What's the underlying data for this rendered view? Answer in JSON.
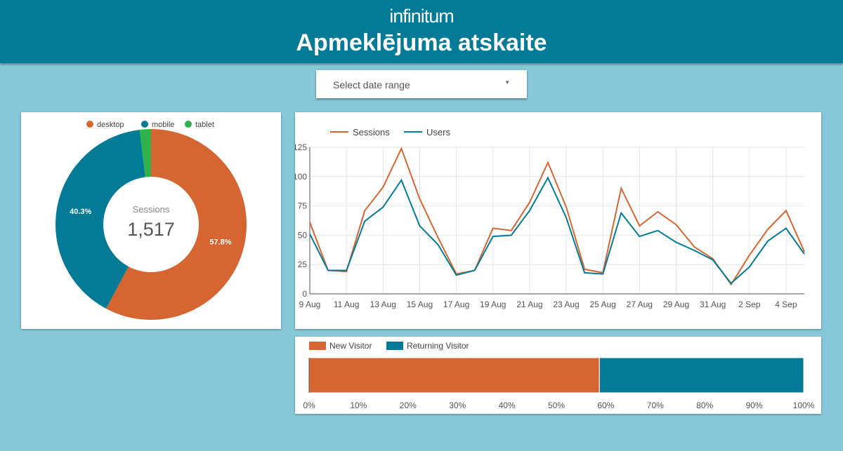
{
  "header": {
    "logo": "infinitum",
    "title": "Apmeklējuma atskaite"
  },
  "date_range": {
    "placeholder": "Select date range"
  },
  "chart_data": [
    {
      "type": "pie",
      "legend": [
        "desktop",
        "mobile",
        "tablet"
      ],
      "values": [
        57.8,
        40.3,
        1.9
      ],
      "labels": [
        "57.8%",
        "40.3%",
        ""
      ],
      "colors": [
        "#d66631",
        "#037b96",
        "#2db34a"
      ],
      "center_label": "Sessions",
      "center_value": "1,517"
    },
    {
      "type": "line",
      "legend_position": "top-left",
      "ylim": [
        0,
        125
      ],
      "yticks": [
        "0",
        "25",
        "50",
        "75",
        "100",
        "125"
      ],
      "xticks": [
        "9 Aug",
        "11 Aug",
        "13 Aug",
        "15 Aug",
        "17 Aug",
        "19 Aug",
        "21 Aug",
        "23 Aug",
        "25 Aug",
        "27 Aug",
        "29 Aug",
        "31 Aug",
        "2 Sep",
        "4 Sep"
      ],
      "series": [
        {
          "name": "Sessions",
          "color": "#d66631",
          "values": [
            61,
            20,
            19,
            71,
            91,
            124,
            81,
            48,
            17,
            20,
            56,
            54,
            78,
            112,
            74,
            21,
            18,
            90,
            58,
            70,
            59,
            40,
            30,
            8,
            33,
            55,
            71,
            36
          ]
        },
        {
          "name": "Users",
          "color": "#037b96",
          "values": [
            51,
            20,
            20,
            62,
            74,
            97,
            58,
            42,
            16,
            20,
            49,
            50,
            71,
            99,
            65,
            18,
            17,
            69,
            49,
            54,
            44,
            37,
            29,
            9,
            23,
            45,
            56,
            34
          ]
        }
      ]
    },
    {
      "type": "bar",
      "stacked": "100%",
      "series": [
        {
          "name": "New Visitor",
          "color": "#d66631",
          "value": 58.7
        },
        {
          "name": "Returning Visitor",
          "color": "#037b96",
          "value": 41.3
        }
      ],
      "xticks": [
        "0%",
        "10%",
        "20%",
        "30%",
        "40%",
        "50%",
        "60%",
        "70%",
        "80%",
        "90%",
        "100%"
      ]
    }
  ]
}
